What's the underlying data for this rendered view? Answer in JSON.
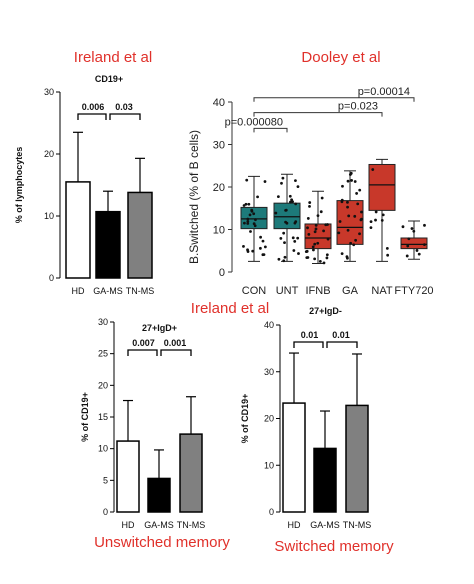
{
  "labels": {
    "ireland_top": "Ireland et al",
    "dooley": "Dooley et al",
    "ireland_mid": "Ireland et al",
    "unswitched": "Unswitched memory",
    "switched": "Switched memory"
  },
  "colors": {
    "label_red": "#e0312b",
    "teal": "#1d7a7a",
    "red_box": "#c8382a",
    "gray_bar": "#808080",
    "black_bar": "#000000"
  },
  "chart_data": [
    {
      "id": "cd19",
      "type": "bar",
      "title": "CD19+",
      "ylabel": "% of lymphocytes",
      "categories": [
        "HD",
        "GA-MS",
        "TN-MS"
      ],
      "values": [
        15.5,
        10.7,
        13.8
      ],
      "errors_upper": [
        23.5,
        14.0,
        19.3
      ],
      "bar_colors": [
        "#ffffff",
        "#000000",
        "#808080"
      ],
      "ylim": [
        0,
        30
      ],
      "yticks": [
        "0",
        "10",
        "20",
        "30"
      ],
      "comparisons": [
        {
          "from": 0,
          "to": 1,
          "label": "0.006"
        },
        {
          "from": 1,
          "to": 2,
          "label": "0.03"
        }
      ]
    },
    {
      "id": "dooley",
      "type": "box",
      "ylabel": "B.Switched (% of B cells)",
      "categories": [
        "CON",
        "UNT",
        "IFNB",
        "GA",
        "NAT",
        "FTY720"
      ],
      "ylim": [
        0,
        40
      ],
      "yticks": [
        "0",
        "10",
        "20",
        "30",
        "40"
      ],
      "boxes": [
        {
          "q1": 10.2,
          "median": 12.5,
          "q3": 15.2,
          "low": 2.5,
          "high": 22.5,
          "color": "#1d7a7a"
        },
        {
          "q1": 10.2,
          "median": 13.0,
          "q3": 16.2,
          "low": 2.5,
          "high": 23.0,
          "color": "#1d7a7a"
        },
        {
          "q1": 5.5,
          "median": 8.0,
          "q3": 11.3,
          "low": 2.0,
          "high": 19.0,
          "color": "#c8382a"
        },
        {
          "q1": 6.5,
          "median": 10.5,
          "q3": 16.8,
          "low": 2.5,
          "high": 23.8,
          "color": "#c8382a"
        },
        {
          "q1": 14.5,
          "median": 20.5,
          "q3": 25.3,
          "low": 2.5,
          "high": 26.5,
          "color": "#c8382a"
        },
        {
          "q1": 5.5,
          "median": 6.5,
          "q3": 8.0,
          "low": 3.0,
          "high": 12.0,
          "color": "#c8382a"
        }
      ],
      "comparisons": [
        {
          "from": 0,
          "to": 1,
          "label": "p=0.000080",
          "level": 0
        },
        {
          "from": 0,
          "to": 4,
          "label": "p=0.023",
          "level": 1
        },
        {
          "from": 0,
          "to": 5,
          "label": "p=0.00014",
          "level": 2
        }
      ]
    },
    {
      "id": "unswitched",
      "type": "bar",
      "title": "27+IgD+",
      "ylabel": "% of CD19+",
      "categories": [
        "HD",
        "GA-MS",
        "TN-MS"
      ],
      "values": [
        11.2,
        5.3,
        12.3
      ],
      "errors_upper": [
        17.6,
        9.8,
        18.2
      ],
      "bar_colors": [
        "#ffffff",
        "#000000",
        "#808080"
      ],
      "ylim": [
        0,
        30
      ],
      "yticks": [
        "0",
        "5",
        "10",
        "15",
        "20",
        "25",
        "30"
      ],
      "comparisons": [
        {
          "from": 0,
          "to": 1,
          "label": "0.007"
        },
        {
          "from": 1,
          "to": 2,
          "label": "0.001"
        }
      ]
    },
    {
      "id": "switched",
      "type": "bar",
      "title": "27+IgD-",
      "ylabel": "% of CD19+",
      "categories": [
        "HD",
        "GA-MS",
        "TN-MS"
      ],
      "values": [
        23.3,
        13.6,
        22.8
      ],
      "errors_upper": [
        34.0,
        21.6,
        33.8
      ],
      "bar_colors": [
        "#ffffff",
        "#000000",
        "#808080"
      ],
      "ylim": [
        0,
        40
      ],
      "yticks": [
        "0",
        "10",
        "20",
        "30",
        "40"
      ],
      "comparisons": [
        {
          "from": 0,
          "to": 1,
          "label": "0.01"
        },
        {
          "from": 1,
          "to": 2,
          "label": "0.01"
        }
      ]
    }
  ]
}
